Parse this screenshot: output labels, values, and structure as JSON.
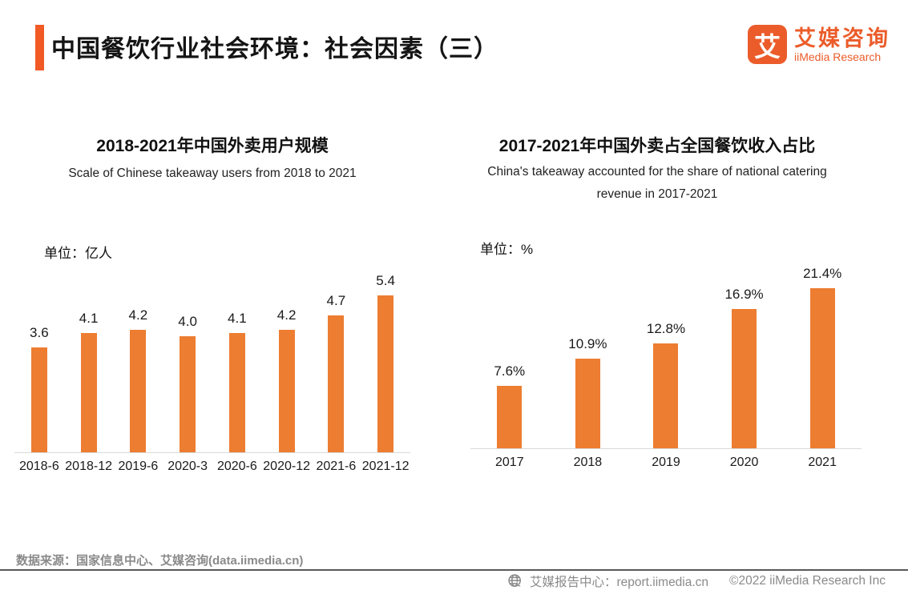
{
  "header": {
    "title": "中国餐饮行业社会环境：社会因素（三）",
    "logo": {
      "mark": "艾",
      "name_cn": "艾媒咨询",
      "name_en": "iiMedia Research"
    }
  },
  "colors": {
    "bar": "#ED7D31",
    "accent": "#F15A25",
    "brand": "#EB5C2A",
    "axis": "#D9D9D9",
    "divider": "#595959",
    "footer_text": "#8A8A8A"
  },
  "chart_data": [
    {
      "type": "bar",
      "title": "2018-2021年中国外卖用户规模",
      "subtitle": "Scale of Chinese takeaway users from 2018 to 2021",
      "unit_label": "单位：亿人",
      "categories": [
        "2018-6",
        "2018-12",
        "2019-6",
        "2020-3",
        "2020-6",
        "2020-12",
        "2021-6",
        "2021-12"
      ],
      "values": [
        3.6,
        4.1,
        4.2,
        4.0,
        4.1,
        4.2,
        4.7,
        5.4
      ],
      "value_labels": [
        "3.6",
        "4.1",
        "4.2",
        "4.0",
        "4.1",
        "4.2",
        "4.7",
        "5.4"
      ],
      "ylim": [
        0,
        6.3
      ],
      "grid": false,
      "legend": "none",
      "bar_color": "#ED7D31"
    },
    {
      "type": "bar",
      "title": "2017-2021年中国外卖占全国餐饮收入占比",
      "subtitle": "China's takeaway accounted for the share of national catering revenue in 2017-2021",
      "unit_label": "单位：%",
      "categories": [
        "2017",
        "2018",
        "2019",
        "2020",
        "2021"
      ],
      "values": [
        7.6,
        10.9,
        12.8,
        16.9,
        21.4
      ],
      "value_labels": [
        "7.6%",
        "10.9%",
        "12.8%",
        "16.9%",
        "21.4%"
      ],
      "ylim": [
        0,
        22.2
      ],
      "grid": false,
      "legend": "none",
      "bar_color": "#ED7D31"
    }
  ],
  "footer": {
    "source": "数据来源：国家信息中心、艾媒咨询(data.iimedia.cn)",
    "report_center": "艾媒报告中心：report.iimedia.cn",
    "copyright": "©2022  iiMedia Research Inc"
  }
}
